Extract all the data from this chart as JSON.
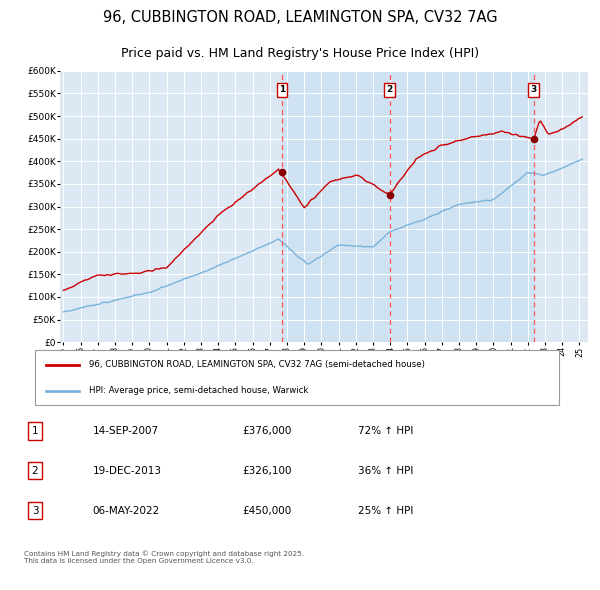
{
  "title": "96, CUBBINGTON ROAD, LEAMINGTON SPA, CV32 7AG",
  "subtitle": "Price paid vs. HM Land Registry's House Price Index (HPI)",
  "title_fontsize": 10.5,
  "subtitle_fontsize": 9,
  "background_color": "#ffffff",
  "plot_bg_color": "#dce9f5",
  "grid_color": "#ffffff",
  "ylim": [
    0,
    600000
  ],
  "yticks": [
    0,
    50000,
    100000,
    150000,
    200000,
    250000,
    300000,
    350000,
    400000,
    450000,
    500000,
    550000,
    600000
  ],
  "legend_line1": "96, CUBBINGTON ROAD, LEAMINGTON SPA, CV32 7AG (semi-detached house)",
  "legend_line2": "HPI: Average price, semi-detached house, Warwick",
  "hpi_line_color": "#7ab3d9",
  "price_line_color": "#cc0000",
  "sale_marker_color": "#880000",
  "dashed_line_color": "#ff5555",
  "span_color": "#c5ddf0",
  "sale_points": [
    {
      "date_num": 2007.71,
      "price": 376000,
      "label": "1",
      "date_str": "14-SEP-2007",
      "pct": "72% ↑ HPI"
    },
    {
      "date_num": 2013.97,
      "price": 326100,
      "label": "2",
      "date_str": "19-DEC-2013",
      "pct": "36% ↑ HPI"
    },
    {
      "date_num": 2022.35,
      "price": 450000,
      "label": "3",
      "date_str": "06-MAY-2022",
      "pct": "25% ↑ HPI"
    }
  ],
  "footer_text": "Contains HM Land Registry data © Crown copyright and database right 2025.\nThis data is licensed under the Open Government Licence v3.0.",
  "table_rows": [
    {
      "num": "1",
      "date": "14-SEP-2007",
      "price": "£376,000",
      "pct": "72% ↑ HPI"
    },
    {
      "num": "2",
      "date": "19-DEC-2013",
      "price": "£326,100",
      "pct": "36% ↑ HPI"
    },
    {
      "num": "3",
      "date": "06-MAY-2022",
      "price": "£450,000",
      "pct": "25% ↑ HPI"
    }
  ]
}
